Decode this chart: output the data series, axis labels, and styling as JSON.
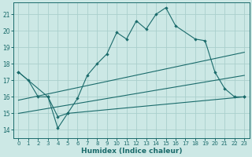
{
  "title": "",
  "xlabel": "Humidex (Indice chaleur)",
  "xlim": [
    -0.5,
    23.5
  ],
  "ylim": [
    13.5,
    21.7
  ],
  "yticks": [
    14,
    15,
    16,
    17,
    18,
    19,
    20,
    21
  ],
  "xticks": [
    0,
    1,
    2,
    3,
    4,
    5,
    6,
    7,
    8,
    9,
    10,
    11,
    12,
    13,
    14,
    15,
    16,
    17,
    18,
    19,
    20,
    21,
    22,
    23
  ],
  "bg_color": "#cce8e5",
  "grid_color": "#aacfcc",
  "line_color": "#1a6b6b",
  "line1_x": [
    0,
    1,
    2,
    3,
    4,
    5,
    6,
    7,
    8,
    9,
    10,
    11,
    12,
    13,
    14,
    15,
    16,
    18,
    19,
    20,
    21,
    22,
    23
  ],
  "line1_y": [
    17.5,
    17.0,
    16.0,
    16.0,
    14.8,
    15.0,
    15.9,
    17.3,
    18.0,
    18.6,
    19.9,
    19.5,
    20.6,
    20.1,
    21.0,
    21.4,
    20.3,
    19.5,
    19.4,
    17.5,
    16.5,
    16.0,
    16.0
  ],
  "line2_x": [
    0,
    3,
    4,
    5,
    23
  ],
  "line2_y": [
    17.5,
    16.0,
    14.1,
    15.0,
    16.0
  ],
  "line3_x": [
    0,
    23
  ],
  "line3_y": [
    15.8,
    18.7
  ],
  "line4_x": [
    0,
    23
  ],
  "line4_y": [
    15.0,
    17.3
  ]
}
